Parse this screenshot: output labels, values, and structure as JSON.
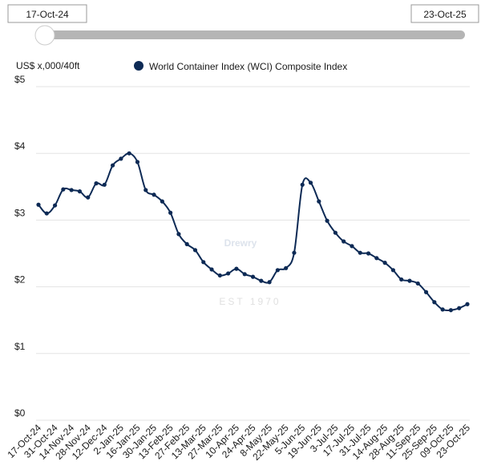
{
  "slider": {
    "start": "17-Oct-24",
    "end": "23-Oct-25"
  },
  "watermark": {
    "brand": "Drewry",
    "tagline": "EST 1970"
  },
  "chart_data": {
    "type": "line",
    "y_label": "US$ x,000/40ft",
    "categories": [
      "17-Oct-24",
      null,
      "31-Oct-24",
      null,
      "14-Nov-24",
      null,
      "28-Nov-24",
      null,
      "12-Dec-24",
      null,
      "2-Jan-25",
      null,
      "16-Jan-25",
      null,
      "30-Jan-25",
      null,
      "13-Feb-25",
      null,
      "27-Feb-25",
      null,
      "13-Mar-25",
      null,
      "27-Mar-25",
      null,
      "10-Apr-25",
      null,
      "24-Apr-25",
      null,
      "8-May-25",
      null,
      "22-May-25",
      null,
      "5-Jun-25",
      null,
      "19-Jun-25",
      null,
      "3-Jul-25",
      null,
      "17-Jul-25",
      null,
      "31-Jul-25",
      null,
      "14-Aug-25",
      null,
      "28-Aug-25",
      null,
      "11-Sep-25",
      null,
      "25-Sep-25",
      null,
      "09-Oct-25",
      null,
      "23-Oct-25"
    ],
    "series": [
      {
        "name": "World Container Index (WCI) Composite Index",
        "color": "#0d2a55",
        "values": [
          3.23,
          3.1,
          3.22,
          3.46,
          3.45,
          3.43,
          3.34,
          3.55,
          3.53,
          3.82,
          3.92,
          4.0,
          3.87,
          3.45,
          3.38,
          3.28,
          3.11,
          2.79,
          2.64,
          2.55,
          2.37,
          2.26,
          2.17,
          2.2,
          2.27,
          2.19,
          2.15,
          2.09,
          2.07,
          2.25,
          2.28,
          2.51,
          3.53,
          3.56,
          3.28,
          2.99,
          2.81,
          2.68,
          2.61,
          2.51,
          2.5,
          2.43,
          2.36,
          2.25,
          2.11,
          2.09,
          2.05,
          1.92,
          1.77,
          1.66,
          1.65,
          1.68,
          1.74
        ]
      }
    ],
    "ylim": [
      0,
      5
    ],
    "yticks": [
      {
        "value": 0,
        "label": "$0"
      },
      {
        "value": 1,
        "label": "$1"
      },
      {
        "value": 2,
        "label": "$2"
      },
      {
        "value": 3,
        "label": "$3"
      },
      {
        "value": 4,
        "label": "$4"
      },
      {
        "value": 5,
        "label": "$5"
      }
    ],
    "grid": true
  }
}
